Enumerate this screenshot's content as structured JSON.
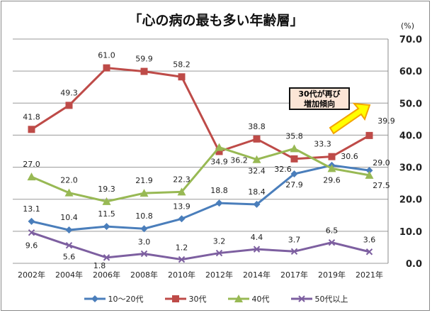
{
  "chart_data": {
    "type": "line",
    "title": "「心の病の最も多い年齢層」",
    "unit_label": "(%)",
    "categories": [
      "2002年",
      "2004年",
      "2006年",
      "2008年",
      "2010年",
      "2012年",
      "2014年",
      "2017年",
      "2019年",
      "2021年"
    ],
    "ylim": [
      0,
      70
    ],
    "yticks": [
      "0.0",
      "10.0",
      "20.0",
      "30.0",
      "40.0",
      "50.0",
      "60.0",
      "70.0"
    ],
    "grid": true,
    "legend_position": "bottom",
    "series": [
      {
        "name": "10～20代",
        "color": "#4a7ebb",
        "marker": "diamond",
        "values": [
          13.1,
          10.4,
          11.5,
          10.8,
          13.9,
          18.8,
          18.4,
          27.9,
          30.6,
          29.0
        ],
        "labels": [
          "13.1",
          "10.4",
          "11.5",
          "10.8",
          "13.9",
          "18.8",
          "18.4",
          "27.9",
          "30.6",
          "29.0"
        ]
      },
      {
        "name": "30代",
        "color": "#be4b48",
        "marker": "square",
        "values": [
          41.8,
          49.3,
          61.0,
          59.9,
          58.2,
          34.9,
          38.8,
          32.6,
          33.3,
          39.9
        ],
        "labels": [
          "41.8",
          "49.3",
          "61.0",
          "59.9",
          "58.2",
          "34.9",
          "38.8",
          "32.6",
          "33.3",
          "39.9"
        ]
      },
      {
        "name": "40代",
        "color": "#98b954",
        "marker": "triangle",
        "values": [
          27.0,
          22.0,
          19.3,
          21.9,
          22.3,
          36.2,
          32.4,
          35.8,
          29.6,
          27.5
        ],
        "labels": [
          "27.0",
          "22.0",
          "19.3",
          "21.9",
          "22.3",
          "36.2",
          "32.4",
          "35.8",
          "29.6",
          "27.5"
        ]
      },
      {
        "name": "50代以上",
        "color": "#7d5fa0",
        "marker": "x",
        "values": [
          9.6,
          5.6,
          1.8,
          3.0,
          1.2,
          3.2,
          4.4,
          3.7,
          6.5,
          3.6
        ],
        "labels": [
          "9.6",
          "5.6",
          "1.8",
          "3.0",
          "1.2",
          "3.2",
          "4.4",
          "3.7",
          "6.5",
          "3.6"
        ]
      }
    ],
    "annotations": [
      {
        "text_line1": "30代が再び",
        "text_line2": "増加傾向",
        "arrow_color": "#ffff00"
      }
    ]
  }
}
